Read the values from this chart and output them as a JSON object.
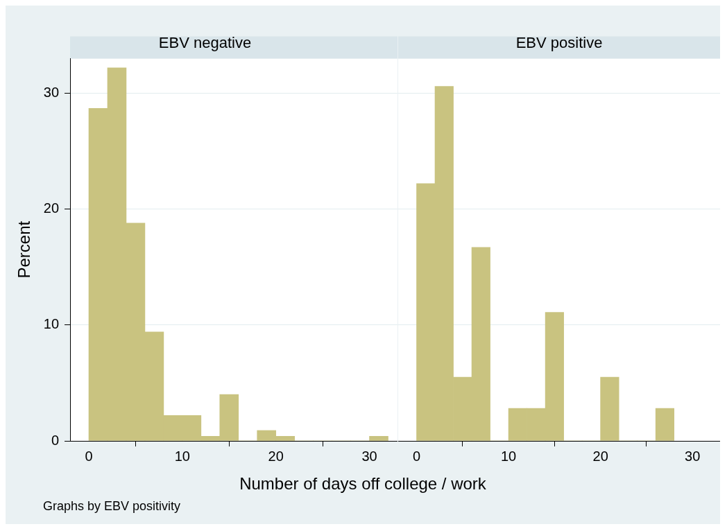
{
  "chart_data": [
    {
      "type": "histogram",
      "title": "EBV negative",
      "ylabel": "Percent",
      "xlabel": "Number of days off college / work",
      "annotations": [
        "Graphs by EBV positivity"
      ],
      "bins": [
        0,
        2,
        4,
        6,
        8,
        10,
        12,
        14,
        16,
        18,
        20,
        22,
        24,
        26,
        28,
        30,
        32
      ],
      "values": [
        28.7,
        32.2,
        18.8,
        9.4,
        2.2,
        2.2,
        0.4,
        4.0,
        0,
        0.9,
        0.4,
        0,
        0,
        0,
        0,
        0.4
      ],
      "color": "#c9c380",
      "xlim": [
        -2,
        33
      ],
      "xticks": [
        0,
        10,
        20,
        30
      ],
      "ylim": [
        0,
        33
      ],
      "yticks": [
        0,
        10,
        20,
        30
      ],
      "grid": "y"
    },
    {
      "type": "histogram",
      "title": "EBV positive",
      "tick_labels": "x",
      "bins": [
        0,
        2,
        4,
        6,
        8,
        10,
        12,
        14,
        16,
        18,
        20,
        22,
        24,
        26,
        28
      ],
      "values": [
        22.2,
        30.6,
        5.5,
        16.7,
        0,
        2.8,
        2.8,
        11.1,
        0,
        0,
        5.5,
        0,
        0,
        2.8
      ],
      "color": "#c9c380",
      "xlim": [
        -2,
        33
      ],
      "xticks": [
        0,
        10,
        20,
        30
      ],
      "ylim": [
        0,
        33
      ],
      "yticks": [
        0,
        10,
        20,
        30
      ],
      "grid": "y"
    }
  ]
}
